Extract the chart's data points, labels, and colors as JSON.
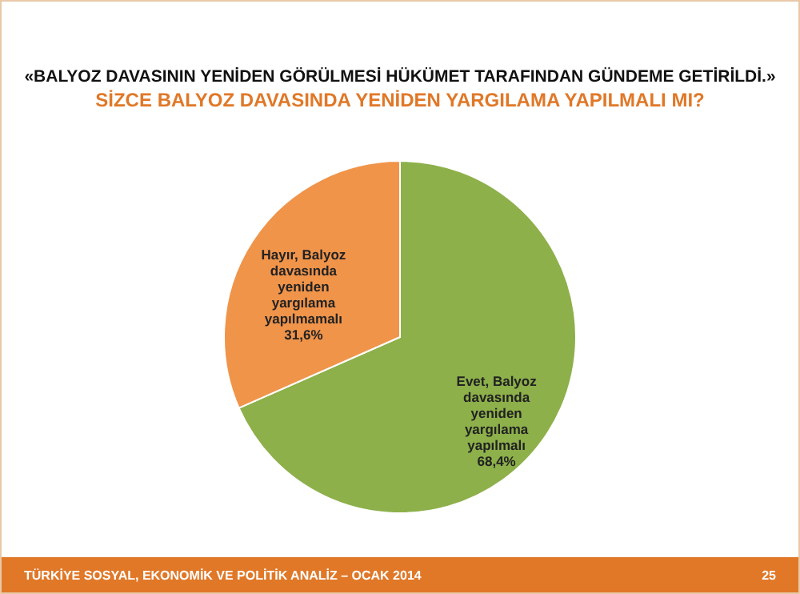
{
  "chart_data": {
    "type": "pie",
    "title": "«BALYOZ DAVASININ YENİDEN GÖRÜLMESİ HÜKÜMET TARAFINDAN GÜNDEME GETİRİLDİ.»",
    "subtitle": "SİZCE BALYOZ DAVASINDA YENİDEN YARGILAMA YAPILMALI MI?",
    "categories": [
      "Evet, Balyoz davasında yeniden yargılama yapılmalı",
      "Hayır, Balyoz davasında yeniden yargılama yapılmamalı"
    ],
    "values": [
      68.4,
      31.6
    ],
    "value_labels": [
      "68,4%",
      "31,6%"
    ],
    "colors": [
      "#8db04a",
      "#f0944a"
    ],
    "annotations": [
      "TÜRKİYE SOSYAL, EKONOMİK VE POLİTİK ANALİZ – OCAK 2014",
      "25"
    ]
  }
}
